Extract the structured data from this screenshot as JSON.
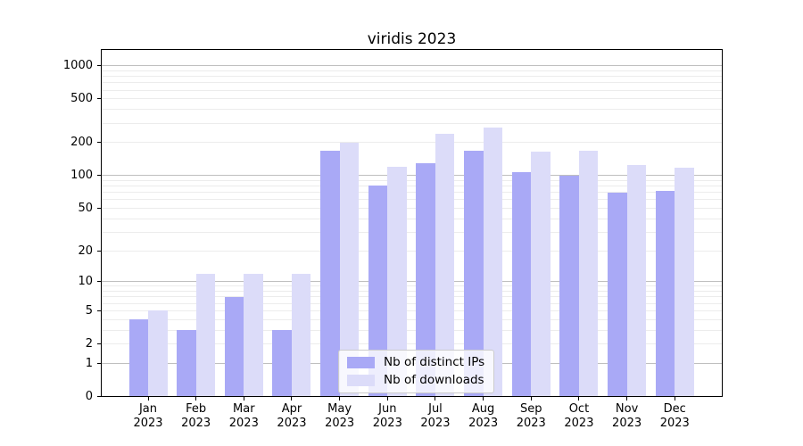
{
  "title": "viridis 2023",
  "chart_data": {
    "type": "bar",
    "categories": [
      "Jan 2023",
      "Feb 2023",
      "Mar 2023",
      "Apr 2023",
      "May 2023",
      "Jun 2023",
      "Jul 2023",
      "Aug 2023",
      "Sep 2023",
      "Oct 2023",
      "Nov 2023",
      "Dec 2023"
    ],
    "series": [
      {
        "name": "Nb of distinct IPs",
        "values": [
          4,
          3,
          7,
          3,
          170,
          81,
          130,
          169,
          107,
          100,
          70,
          72
        ]
      },
      {
        "name": "Nb of downloads",
        "values": [
          5,
          12,
          12,
          12,
          198,
          121,
          240,
          275,
          167,
          168,
          125,
          118
        ]
      }
    ],
    "xlabel": "",
    "ylabel": "",
    "yscale": "log1p",
    "ylim": [
      0,
      1400
    ],
    "y_ticks": [
      0,
      1,
      2,
      5,
      10,
      20,
      50,
      100,
      200,
      500,
      1000
    ],
    "grid": "horizontal major+minor",
    "legend_position": "lower center"
  },
  "colors": {
    "bar_distinct_ips": "#a9a9f6",
    "bar_downloads": "#dcdcf9",
    "grid_major": "#bfbfbf",
    "grid_minor": "#ececec",
    "axis": "#000000",
    "background": "#ffffff",
    "text": "#000000"
  }
}
